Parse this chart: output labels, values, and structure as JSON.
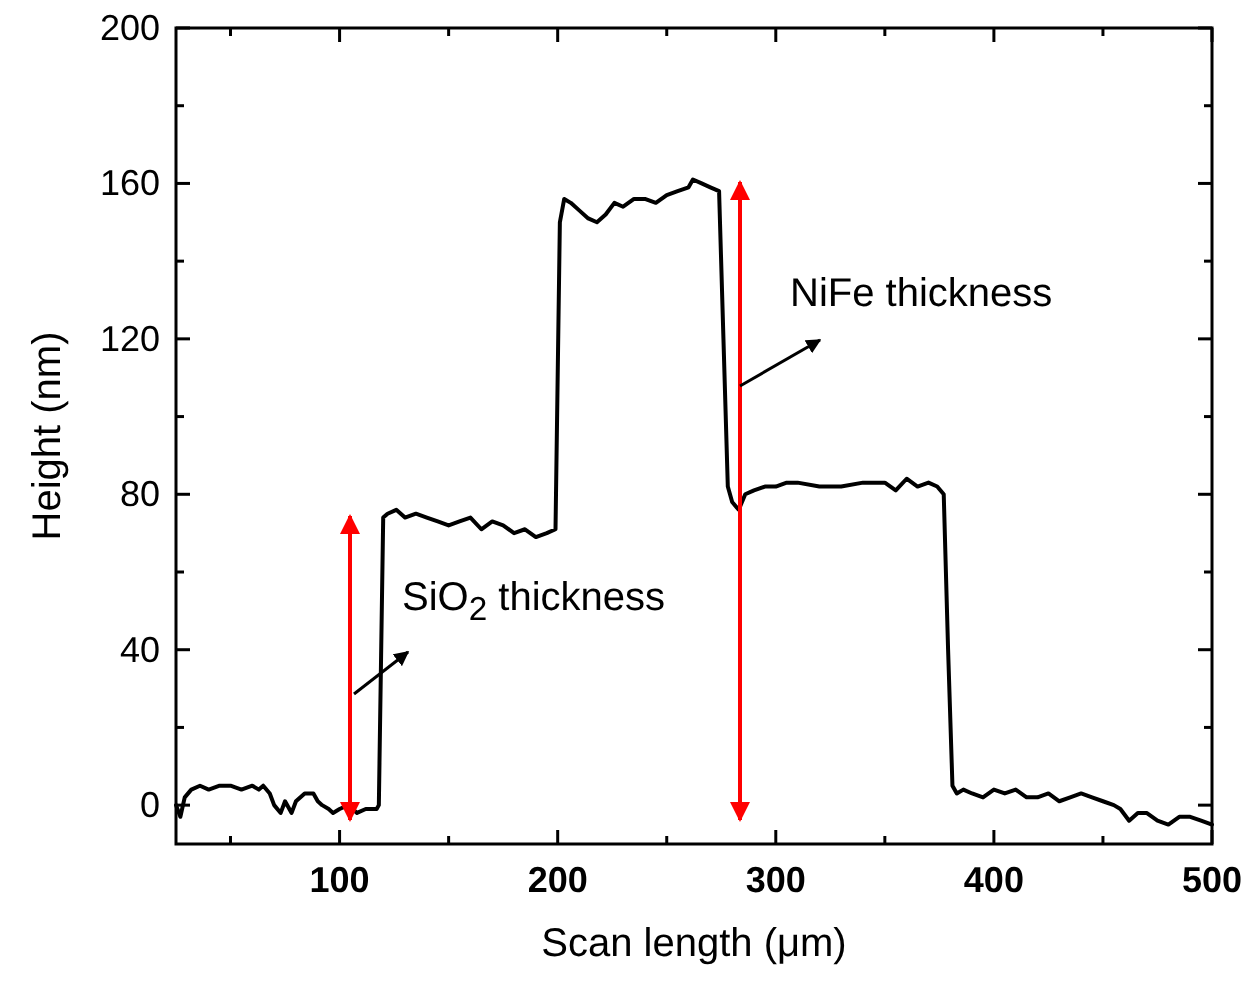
{
  "chart_data": {
    "type": "line",
    "xlabel": "Scan length (μm)",
    "ylabel": "Height (nm)",
    "xlim": [
      25,
      500
    ],
    "ylim": [
      -10,
      200
    ],
    "xticks": [
      {
        "value": 50,
        "label": null
      },
      100,
      {
        "value": 150,
        "label": null
      },
      200,
      {
        "value": 250,
        "label": null
      },
      300,
      {
        "value": 350,
        "label": null
      },
      400,
      {
        "value": 450,
        "label": null
      },
      500
    ],
    "yticks": [
      0,
      {
        "value": 20,
        "label": null
      },
      40,
      {
        "value": 60,
        "label": null
      },
      80,
      {
        "value": 100,
        "label": null
      },
      120,
      {
        "value": 140,
        "label": null
      },
      160,
      {
        "value": 180,
        "label": null
      },
      200
    ],
    "grid": false,
    "marker": "none",
    "line_style": "solid",
    "series": [
      {
        "color": "#000000",
        "x": [
          25,
          27,
          29,
          32,
          36,
          40,
          45,
          50,
          55,
          60,
          63,
          65,
          68,
          70,
          73,
          75,
          78,
          80,
          84,
          88,
          90,
          92,
          95,
          97,
          100,
          104,
          108,
          112,
          117,
          118,
          120,
          122,
          126,
          130,
          135,
          140,
          145,
          150,
          155,
          160,
          165,
          170,
          175,
          180,
          185,
          190,
          195,
          199,
          201,
          203,
          206,
          210,
          214,
          218,
          222,
          226,
          230,
          235,
          240,
          245,
          250,
          255,
          260,
          262,
          266,
          270,
          274,
          276,
          278,
          280,
          283,
          286,
          290,
          295,
          300,
          305,
          310,
          320,
          330,
          340,
          350,
          355,
          360,
          365,
          370,
          374,
          377,
          379,
          381,
          383,
          386,
          390,
          395,
          400,
          405,
          410,
          415,
          420,
          425,
          430,
          435,
          440,
          445,
          450,
          455,
          458,
          462,
          466,
          470,
          475,
          480,
          485,
          490,
          495,
          500
        ],
        "values": [
          0,
          -3,
          2,
          4,
          5,
          4,
          5,
          5,
          4,
          5,
          4,
          5,
          3,
          0,
          -2,
          1,
          -2,
          1,
          3,
          3,
          1,
          0,
          -1,
          -2,
          -1,
          0,
          -2,
          -1,
          -1,
          0,
          74,
          75,
          76,
          74,
          75,
          74,
          73,
          72,
          73,
          74,
          71,
          73,
          72,
          70,
          71,
          69,
          70,
          71,
          150,
          156,
          155,
          153,
          151,
          150,
          152,
          155,
          154,
          156,
          156,
          155,
          157,
          158,
          159,
          161,
          160,
          159,
          158,
          120,
          82,
          78,
          76,
          80,
          81,
          82,
          82,
          83,
          83,
          82,
          82,
          83,
          83,
          81,
          84,
          82,
          83,
          82,
          80,
          40,
          5,
          3,
          4,
          3,
          2,
          4,
          3,
          4,
          2,
          2,
          3,
          1,
          2,
          3,
          2,
          1,
          0,
          -1,
          -4,
          -2,
          -2,
          -4,
          -5,
          -3,
          -3,
          -4,
          -5
        ]
      }
    ],
    "annotations": [
      "SiO$_{2}$ thickness",
      "NiFe thickness"
    ]
  }
}
